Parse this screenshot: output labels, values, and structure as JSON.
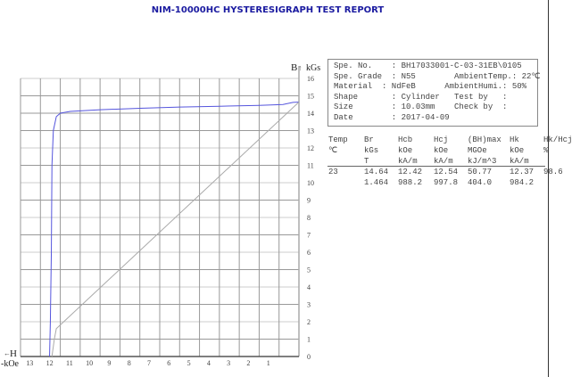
{
  "title": "NIM-10000HC HYSTERESIGRAPH TEST REPORT",
  "info": {
    "spe_no": "Spe. No.    : BH17033001-C-03-31EB\\0105",
    "grade": "Spe. Grade  : N55        AmbientTemp.: 22℃",
    "material": "Material  : NdFeB      AmbientHumi.: 50%",
    "shape": "Shape       : Cylinder   Test by   :",
    "size": "Size        : 10.03mm    Check by  :",
    "date": "Date        : 2017-04-09"
  },
  "table": {
    "headers": [
      [
        "Temp",
        "℃",
        ""
      ],
      [
        "Br",
        "kGs",
        "T"
      ],
      [
        "Hcb",
        "kOe",
        "kA/m"
      ],
      [
        "Hcj",
        "kOe",
        "kA/m"
      ],
      [
        "(BH)max",
        "MGOe",
        "kJ/m^3"
      ],
      [
        "Hk",
        "kOe",
        "kA/m"
      ],
      [
        "Hk/Hcj",
        "%",
        ""
      ]
    ],
    "rows": [
      [
        "23",
        "14.64",
        "12.42",
        "12.54",
        "50.77",
        "12.37",
        "98.6"
      ],
      [
        "",
        "1.464",
        "988.2",
        "997.8",
        "404.0",
        "984.2",
        ""
      ]
    ]
  },
  "chart_data": {
    "type": "line",
    "xlabel": "H",
    "xunit": "-kOe",
    "ylabel": "B",
    "yunit": "kGs",
    "xlim": [
      14,
      0
    ],
    "ylim": [
      0,
      16
    ],
    "x_ticks": [
      "13",
      "12",
      "11",
      "10",
      "9",
      "8",
      "7",
      "6",
      "5",
      "4",
      "3",
      "2",
      "1"
    ],
    "y_ticks": [
      "0",
      "1",
      "2",
      "3",
      "4",
      "5",
      "6",
      "7",
      "8",
      "9",
      "10",
      "11",
      "12",
      "13",
      "14",
      "15",
      "16"
    ],
    "grid": true,
    "series": [
      {
        "color": "#5555dd",
        "points": [
          [
            0,
            14.64
          ],
          [
            0.3,
            14.62
          ],
          [
            0.8,
            14.5
          ],
          [
            2,
            14.45
          ],
          [
            4,
            14.4
          ],
          [
            6,
            14.35
          ],
          [
            8,
            14.28
          ],
          [
            10,
            14.2
          ],
          [
            11.5,
            14.1
          ],
          [
            12.0,
            14.0
          ],
          [
            12.2,
            13.8
          ],
          [
            12.35,
            13.0
          ],
          [
            12.42,
            11
          ],
          [
            12.45,
            6
          ],
          [
            12.5,
            2
          ],
          [
            12.54,
            0
          ]
        ]
      },
      {
        "color": "#aaaaaa",
        "points": [
          [
            0,
            14.64
          ],
          [
            12.2,
            1.6
          ],
          [
            12.3,
            1.0
          ],
          [
            12.42,
            0
          ]
        ]
      }
    ]
  }
}
